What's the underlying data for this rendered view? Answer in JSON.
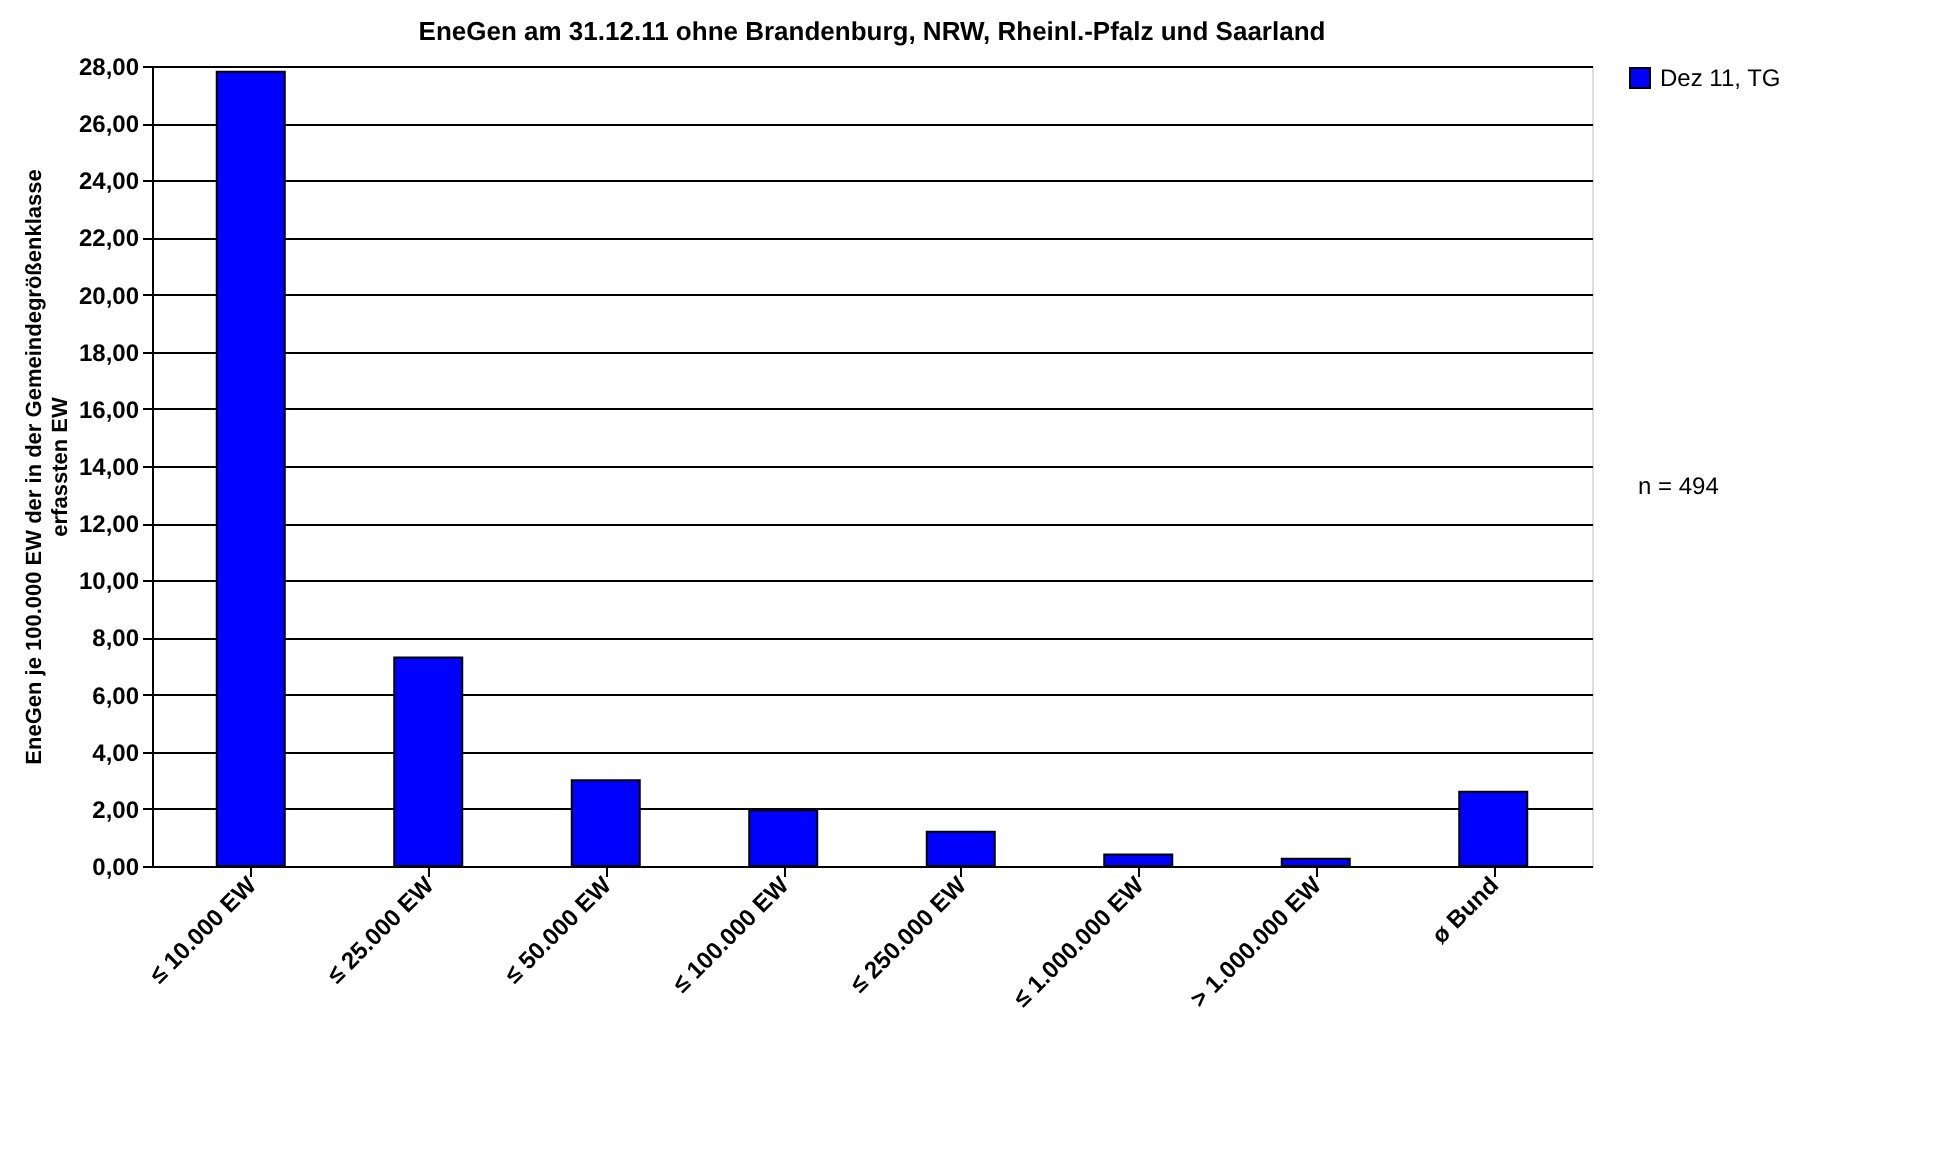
{
  "chart_data": {
    "type": "bar",
    "title": "EneGen am 31.12.11 ohne Brandenburg, NRW, Rheinl.-Pfalz und Saarland",
    "ylabel": "EneGen je 100.000 EW der in der Gemeindegrößenklasse erfassten EW",
    "categories": [
      "≤ 10.000 EW",
      "≤ 25.000 EW",
      "≤ 50.000 EW",
      "≤ 100.000 EW",
      "≤ 250.000 EW",
      "≤ 1.000.000 EW",
      "> 1.000.000 EW",
      "ø Bund"
    ],
    "series": [
      {
        "name": "Dez 11, TG",
        "color": "#0000ff",
        "values": [
          27.8,
          7.3,
          3.0,
          1.95,
          1.2,
          0.4,
          0.25,
          2.6
        ]
      }
    ],
    "annotations": [
      "n = 494"
    ],
    "ylim": [
      0,
      28
    ],
    "yticks": [
      {
        "value": 0,
        "label": "0,00"
      },
      {
        "value": 2,
        "label": "2,00"
      },
      {
        "value": 4,
        "label": "4,00"
      },
      {
        "value": 6,
        "label": "6,00"
      },
      {
        "value": 8,
        "label": "8,00"
      },
      {
        "value": 10,
        "label": "10,00"
      },
      {
        "value": 12,
        "label": "12,00"
      },
      {
        "value": 14,
        "label": "14,00"
      },
      {
        "value": 16,
        "label": "16,00"
      },
      {
        "value": 18,
        "label": "18,00"
      },
      {
        "value": 20,
        "label": "20,00"
      },
      {
        "value": 22,
        "label": "22,00"
      },
      {
        "value": 24,
        "label": "24,00"
      },
      {
        "value": 26,
        "label": "26,00"
      },
      {
        "value": 28,
        "label": "28,00"
      }
    ],
    "grid": "y",
    "legend": "right"
  }
}
